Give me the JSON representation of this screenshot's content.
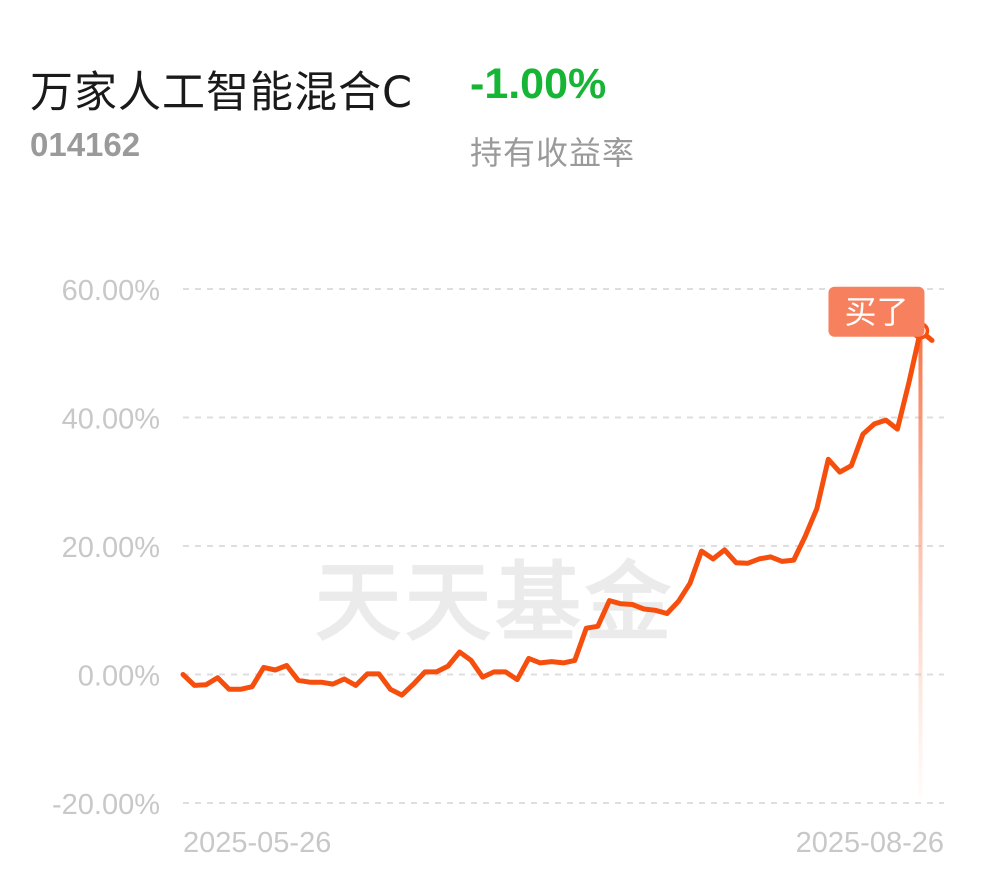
{
  "fund": {
    "name": "万家人工智能混合C",
    "code": "014162",
    "return_value": "-1.00%",
    "return_label": "持有收益率"
  },
  "colors": {
    "line": "#f64e0c",
    "positive_return": "#16b536",
    "grid": "#dedede",
    "axis_text": "#c8c8c8",
    "badge": "#f7805e"
  },
  "watermark": "天天基金",
  "badge_label": "买了",
  "chart_data": {
    "type": "line",
    "title": "",
    "xlabel": "",
    "ylabel": "",
    "ylim": [
      -20,
      60
    ],
    "y_ticks": [
      "60.00%",
      "40.00%",
      "20.00%",
      "0.00%",
      "-20.00%"
    ],
    "y_tick_values": [
      60,
      40,
      20,
      0,
      -20
    ],
    "x_tick_labels": [
      "2025-05-26",
      "2025-08-26"
    ],
    "x_tick_index": [
      0,
      64
    ],
    "grid": true,
    "legend": "none",
    "series": [
      {
        "values": [
          0.0,
          -1.7,
          -1.6,
          -0.5,
          -2.3,
          -2.3,
          -1.9,
          1.1,
          0.7,
          1.4,
          -0.9,
          -1.2,
          -1.2,
          -1.5,
          -0.7,
          -1.7,
          0.1,
          0.1,
          -2.3,
          -3.2,
          -1.5,
          0.4,
          0.4,
          1.3,
          3.5,
          2.2,
          -0.4,
          0.4,
          0.4,
          -0.8,
          2.5,
          1.8,
          2.0,
          1.8,
          2.2,
          7.2,
          7.5,
          11.5,
          11.0,
          10.9,
          10.2,
          10.0,
          9.5,
          11.4,
          14.2,
          19.2,
          18.0,
          19.4,
          17.4,
          17.3,
          18.0,
          18.3,
          17.6,
          17.8,
          21.5,
          25.8,
          33.5,
          31.5,
          32.5,
          37.4,
          39.0,
          39.6,
          38.2,
          45.5,
          53.5,
          52.0
        ]
      }
    ],
    "markers": [
      {
        "index": 64,
        "value": 53.5,
        "label": "买了"
      }
    ]
  }
}
